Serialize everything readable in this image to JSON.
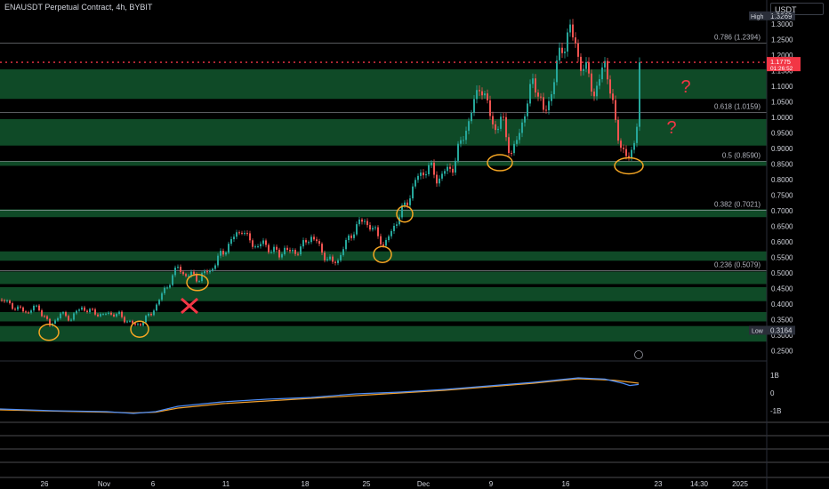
{
  "header": {
    "title": "ENAUSDT Perpetual Contract, 4h, BYBIT",
    "currency_button": "USDT"
  },
  "colors": {
    "up": "#26a69a",
    "down": "#ef5350",
    "zone": "#0f4a27",
    "price_line": "#f23645",
    "marker": "#f5a623",
    "osc_fast": "#4c8cf5",
    "osc_slow": "#f0a030",
    "fib_line": "#b2b5be"
  },
  "chart_data": [
    {
      "type": "candlestick",
      "symbol": "ENAUSDT",
      "timeframe": "4h",
      "exchange": "BYBIT",
      "price_scale": [
        "1.3500",
        "1.3000",
        "1.2500",
        "1.2000",
        "1.1500",
        "1.1000",
        "1.0500",
        "1.0000",
        "0.9500",
        "0.9000",
        "0.8500",
        "0.8000",
        "0.7500",
        "0.7000",
        "0.6500",
        "0.6000",
        "0.5500",
        "0.5000",
        "0.4500",
        "0.4000",
        "0.3500",
        "0.3000",
        "0.2500"
      ],
      "ylim": [
        0.22,
        1.38
      ],
      "x_ticks": [
        "26",
        "Nov",
        "6",
        "11",
        "18",
        "25",
        "Dec",
        "9",
        "16",
        "23",
        "14:30",
        "2025"
      ],
      "high": {
        "label": "High",
        "value": "1.3269"
      },
      "low": {
        "label": "Low",
        "value": "0.3164"
      },
      "current_price": {
        "value": 1.1775,
        "label": "1.1775",
        "countdown": "01:26:52"
      },
      "fib_levels": [
        {
          "label": "0.786 (1.2394)",
          "value": 1.2394
        },
        {
          "label": "0.618 (1.0159)",
          "value": 1.0159
        },
        {
          "label": "0.5 (0.8590)",
          "value": 0.859
        },
        {
          "label": "0.382 (0.7021)",
          "value": 0.7021
        },
        {
          "label": "0.236 (0.5079)",
          "value": 0.5079
        }
      ],
      "demand_zones": [
        [
          0.28,
          0.33
        ],
        [
          0.345,
          0.375
        ],
        [
          0.41,
          0.455
        ],
        [
          0.465,
          0.505
        ],
        [
          0.54,
          0.57
        ],
        [
          0.68,
          0.705
        ],
        [
          0.845,
          0.86
        ],
        [
          0.91,
          0.995
        ],
        [
          1.06,
          1.155
        ]
      ],
      "swing_lows": [
        0.31,
        0.32,
        0.47,
        0.56,
        0.69,
        0.855,
        0.845
      ],
      "price_path": [
        [
          0,
          0.415
        ],
        [
          8,
          0.405
        ],
        [
          14,
          0.395
        ],
        [
          20,
          0.385
        ],
        [
          26,
          0.38
        ],
        [
          32,
          0.375
        ],
        [
          38,
          0.39
        ],
        [
          44,
          0.385
        ],
        [
          50,
          0.36
        ],
        [
          56,
          0.33
        ],
        [
          62,
          0.35
        ],
        [
          68,
          0.37
        ],
        [
          74,
          0.36
        ],
        [
          80,
          0.355
        ],
        [
          86,
          0.375
        ],
        [
          92,
          0.39
        ],
        [
          98,
          0.38
        ],
        [
          104,
          0.375
        ],
        [
          110,
          0.37
        ],
        [
          116,
          0.365
        ],
        [
          122,
          0.37
        ],
        [
          128,
          0.37
        ],
        [
          134,
          0.365
        ],
        [
          140,
          0.35
        ],
        [
          146,
          0.345
        ],
        [
          152,
          0.33
        ],
        [
          158,
          0.34
        ],
        [
          164,
          0.355
        ],
        [
          170,
          0.37
        ],
        [
          176,
          0.4
        ],
        [
          182,
          0.43
        ],
        [
          188,
          0.46
        ],
        [
          194,
          0.49
        ],
        [
          200,
          0.52
        ],
        [
          206,
          0.5
        ],
        [
          212,
          0.49
        ],
        [
          218,
          0.495
        ],
        [
          224,
          0.48
        ],
        [
          230,
          0.5
        ],
        [
          236,
          0.51
        ],
        [
          242,
          0.53
        ],
        [
          248,
          0.56
        ],
        [
          254,
          0.58
        ],
        [
          260,
          0.6
        ],
        [
          266,
          0.63
        ],
        [
          272,
          0.64
        ],
        [
          278,
          0.61
        ],
        [
          284,
          0.6
        ],
        [
          290,
          0.58
        ],
        [
          296,
          0.6
        ],
        [
          302,
          0.58
        ],
        [
          308,
          0.57
        ],
        [
          314,
          0.56
        ],
        [
          320,
          0.58
        ],
        [
          326,
          0.565
        ],
        [
          332,
          0.57
        ],
        [
          338,
          0.58
        ],
        [
          344,
          0.6
        ],
        [
          350,
          0.62
        ],
        [
          356,
          0.6
        ],
        [
          362,
          0.565
        ],
        [
          368,
          0.55
        ],
        [
          374,
          0.53
        ],
        [
          380,
          0.545
        ],
        [
          386,
          0.58
        ],
        [
          392,
          0.61
        ],
        [
          398,
          0.64
        ],
        [
          404,
          0.66
        ],
        [
          410,
          0.67
        ],
        [
          416,
          0.65
        ],
        [
          422,
          0.63
        ],
        [
          428,
          0.61
        ],
        [
          432,
          0.585
        ],
        [
          438,
          0.62
        ],
        [
          444,
          0.66
        ],
        [
          450,
          0.69
        ],
        [
          456,
          0.72
        ],
        [
          462,
          0.76
        ],
        [
          468,
          0.8
        ],
        [
          474,
          0.82
        ],
        [
          480,
          0.84
        ],
        [
          486,
          0.83
        ],
        [
          492,
          0.8
        ],
        [
          498,
          0.82
        ],
        [
          504,
          0.83
        ],
        [
          510,
          0.85
        ],
        [
          516,
          0.9
        ],
        [
          522,
          0.95
        ],
        [
          528,
          1.0
        ],
        [
          534,
          1.05
        ],
        [
          540,
          1.12
        ],
        [
          546,
          1.05
        ],
        [
          552,
          1.0
        ],
        [
          558,
          0.96
        ],
        [
          564,
          1.0
        ],
        [
          570,
          0.93
        ],
        [
          576,
          0.88
        ],
        [
          582,
          0.93
        ],
        [
          588,
          1.0
        ],
        [
          594,
          1.06
        ],
        [
          600,
          1.12
        ],
        [
          606,
          1.08
        ],
        [
          612,
          1.0
        ],
        [
          618,
          1.06
        ],
        [
          624,
          1.15
        ],
        [
          630,
          1.2
        ],
        [
          636,
          1.25
        ],
        [
          640,
          1.3
        ],
        [
          644,
          1.25
        ],
        [
          650,
          1.2
        ],
        [
          656,
          1.16
        ],
        [
          662,
          1.13
        ],
        [
          668,
          1.08
        ],
        [
          674,
          1.12
        ],
        [
          680,
          1.17
        ],
        [
          684,
          1.14
        ],
        [
          688,
          1.06
        ],
        [
          692,
          0.97
        ],
        [
          696,
          0.92
        ],
        [
          700,
          0.91
        ],
        [
          704,
          0.88
        ],
        [
          708,
          0.855
        ],
        [
          712,
          0.9
        ],
        [
          716,
          1.0
        ],
        [
          718,
          1.1
        ],
        [
          720,
          1.1775
        ]
      ],
      "oscillator": {
        "ticks": [
          "1B",
          "0",
          "-1B"
        ],
        "fast": [
          [
            0,
            -0.9
          ],
          [
            60,
            -1.0
          ],
          [
            120,
            -1.05
          ],
          [
            150,
            -1.15
          ],
          [
            175,
            -1.05
          ],
          [
            200,
            -0.75
          ],
          [
            250,
            -0.5
          ],
          [
            300,
            -0.35
          ],
          [
            350,
            -0.25
          ],
          [
            400,
            -0.05
          ],
          [
            450,
            0.05
          ],
          [
            500,
            0.2
          ],
          [
            550,
            0.4
          ],
          [
            600,
            0.6
          ],
          [
            650,
            0.85
          ],
          [
            680,
            0.78
          ],
          [
            700,
            0.55
          ],
          [
            708,
            0.42
          ],
          [
            718,
            0.48
          ]
        ],
        "slow": [
          [
            0,
            -0.95
          ],
          [
            60,
            -1.02
          ],
          [
            120,
            -1.08
          ],
          [
            150,
            -1.12
          ],
          [
            175,
            -1.08
          ],
          [
            200,
            -0.85
          ],
          [
            250,
            -0.6
          ],
          [
            300,
            -0.45
          ],
          [
            350,
            -0.3
          ],
          [
            400,
            -0.15
          ],
          [
            450,
            0.0
          ],
          [
            500,
            0.15
          ],
          [
            550,
            0.35
          ],
          [
            600,
            0.55
          ],
          [
            650,
            0.8
          ],
          [
            690,
            0.72
          ],
          [
            718,
            0.55
          ]
        ]
      }
    }
  ]
}
